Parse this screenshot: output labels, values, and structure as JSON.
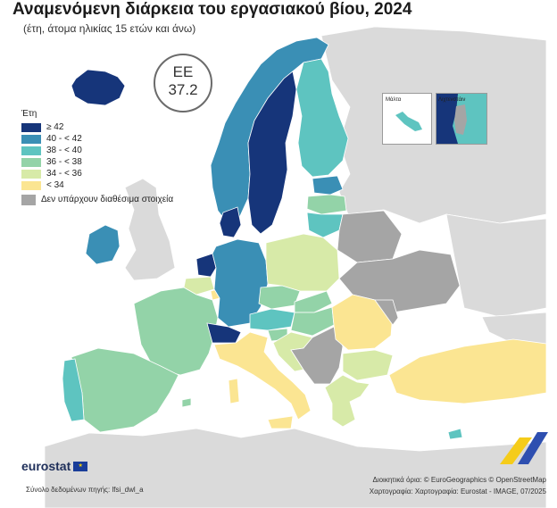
{
  "title": "Αναμενόμενη διάρκεια του εργασιακού βίου, 2024",
  "subtitle": "(έτη, άτομα ηλικίας 15 ετών και άνω)",
  "highlight": {
    "code": "EE",
    "value": "37.2"
  },
  "legend": {
    "title": "Έτη",
    "classes": [
      {
        "label": "≥ 42",
        "color": "#16357a"
      },
      {
        "label": "40 - < 42",
        "color": "#3a8fb5"
      },
      {
        "label": "38 - < 40",
        "color": "#5ec4c0"
      },
      {
        "label": "36 - < 38",
        "color": "#93d3a8"
      },
      {
        "label": "34 - < 36",
        "color": "#d7eaa8"
      },
      {
        "label": "< 34",
        "color": "#fbe592"
      }
    ],
    "no_data": {
      "label": "Δεν υπάρχουν διαθέσιμα στοιχεία",
      "color": "#a5a5a5"
    }
  },
  "colors": {
    "sea": "#ffffff",
    "non_eu": "#dadada",
    "border": "#ffffff"
  },
  "insets": [
    {
      "label": "Μάλτα"
    },
    {
      "label": "Λιχτενστάιν"
    }
  ],
  "logo": {
    "text": "eurostat"
  },
  "source": "Σύνολο δεδομένων πηγής: lfsi_dwl_a",
  "credits": [
    "Διοικητικά όρια: © EuroGeographics © OpenStreetMap",
    "Χαρτογραφία: Χαρτογραφία: Eurostat - IMAGE, 07/2025"
  ]
}
